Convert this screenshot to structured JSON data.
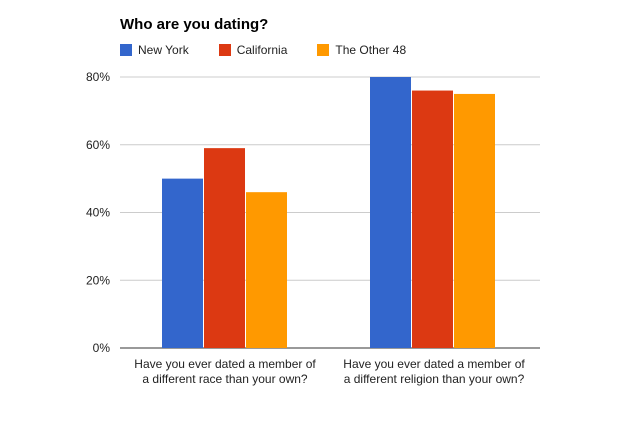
{
  "chart_data": {
    "type": "bar",
    "title": "Who are you dating?",
    "categories": [
      [
        "Have you ever dated a member of",
        "a different race than your own?"
      ],
      [
        "Have you ever dated a member of",
        "a different religion than your own?"
      ]
    ],
    "series": [
      {
        "name": "New York",
        "color": "#3366cc",
        "values": [
          50,
          80
        ]
      },
      {
        "name": "California",
        "color": "#dc3912",
        "values": [
          59,
          76
        ]
      },
      {
        "name": "The Other 48",
        "color": "#ff9900",
        "values": [
          46,
          75
        ]
      }
    ],
    "yticks": [
      "0%",
      "20%",
      "40%",
      "60%",
      "80%"
    ],
    "ytick_values": [
      0,
      20,
      40,
      60,
      80
    ],
    "ylim": [
      0,
      80
    ],
    "grid": true,
    "legend_position": "top"
  }
}
